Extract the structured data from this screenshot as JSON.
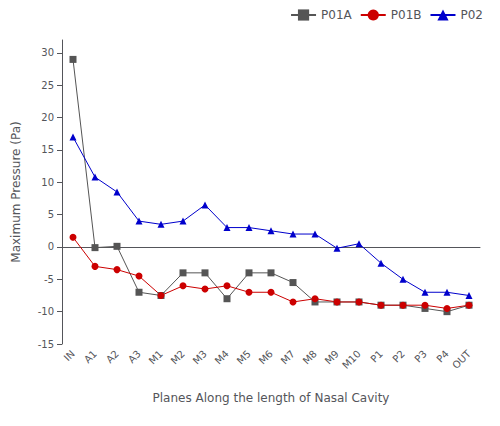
{
  "chart_data": {
    "type": "line",
    "xlabel": "Planes Along the length of Nasal Cavity",
    "ylabel": "Maximum Pressure (Pa)",
    "categories": [
      "IN",
      "A1",
      "A2",
      "A3",
      "M1",
      "M2",
      "M3",
      "M4",
      "M5",
      "M6",
      "M7",
      "M8",
      "M9",
      "M10",
      "P1",
      "P2",
      "P3",
      "P4",
      "OUT"
    ],
    "series": [
      {
        "name": "P01A",
        "color": "#555555",
        "marker": "square",
        "values": [
          29.0,
          -0.1,
          0.1,
          -7.0,
          -7.5,
          -4.0,
          -4.0,
          -8.0,
          -4.0,
          -4.0,
          -5.5,
          -8.5,
          -8.5,
          -8.5,
          -9.0,
          -9.0,
          -9.5,
          -10.0,
          -9.0
        ]
      },
      {
        "name": "P01B",
        "color": "#cc0000",
        "marker": "circle",
        "values": [
          1.5,
          -3.0,
          -3.5,
          -4.5,
          -7.5,
          -6.0,
          -6.5,
          -6.0,
          -7.0,
          -7.0,
          -8.5,
          -8.0,
          -8.5,
          -8.5,
          -9.0,
          -9.0,
          -9.0,
          -9.5,
          -9.0
        ]
      },
      {
        "name": "P02",
        "color": "#0000cc",
        "marker": "triangle",
        "values": [
          17.0,
          10.8,
          8.5,
          4.0,
          3.5,
          4.0,
          6.5,
          3.0,
          3.0,
          2.5,
          2.0,
          2.0,
          -0.2,
          0.5,
          -2.5,
          -5.0,
          -7.0,
          -7.0,
          -7.5
        ]
      }
    ],
    "ylim": [
      -15,
      32
    ],
    "yticks": [
      -15,
      -10,
      -5,
      0,
      5,
      10,
      15,
      20,
      25,
      30
    ],
    "grid": false,
    "legend": "upper right"
  }
}
